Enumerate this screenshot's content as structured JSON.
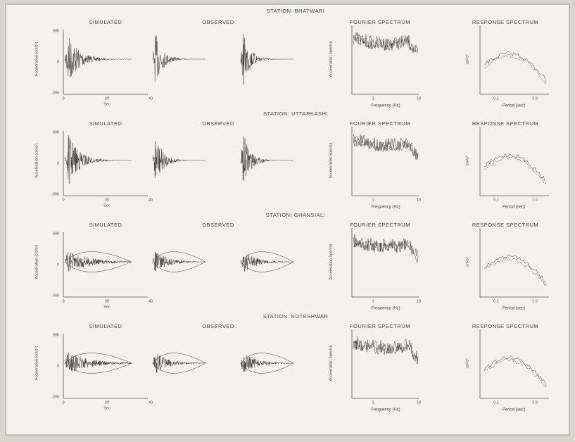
{
  "rows": [
    {
      "station": "STATION: BHATWARI",
      "simulated": "SIMULATED",
      "observed": "OBSERVED",
      "y_axis": "Acceleration (cm/s²)",
      "y_ticks": [
        "300",
        "0",
        "-300"
      ],
      "x_ticks": [
        "0",
        "20",
        "40"
      ],
      "x_axis": "Sec",
      "fourier": {
        "title": "FOURIER SPECTRUM",
        "y_axis": "Acceleration Spectra",
        "x_axis": "Frequency (Hz)",
        "x_ticks": [
          "1",
          "10"
        ]
      },
      "response": {
        "title": "RESPONSE SPECTRUM",
        "y_axis": "cm/s²",
        "x_axis": "Period (sec)",
        "x_ticks": [
          "0.1",
          "1.0"
        ]
      }
    },
    {
      "station": "STATION: UTTARKASHI",
      "simulated": "SIMULATED",
      "observed": "OBSERVED",
      "y_axis": "Acceleration (cm/s²)",
      "y_ticks": [
        "300",
        "0",
        "-300"
      ],
      "x_ticks": [
        "0",
        "20",
        "40"
      ],
      "x_axis": "Sec",
      "fourier": {
        "title": "FOURIER SPECTRUM",
        "y_axis": "Acceleration Spectra",
        "x_axis": "Frequency (Hz)",
        "x_ticks": [
          "1",
          "10"
        ]
      },
      "response": {
        "title": "RESPONSE SPECTRUM",
        "y_axis": "cm/s²",
        "x_axis": "Period (sec)",
        "x_ticks": [
          "0.1",
          "1.0"
        ]
      }
    },
    {
      "station": "STATION: GHANSIALI",
      "simulated": "SIMULATED",
      "observed": "OBSERVED",
      "y_axis": "Acceleration (cm/s²)",
      "y_ticks": [
        "300",
        "0",
        "-300"
      ],
      "x_ticks": [
        "0",
        "20",
        "40"
      ],
      "x_axis": "Sec",
      "fourier": {
        "title": "FOURIER SPECTRUM",
        "y_axis": "Acceleration Spectra",
        "x_axis": "Frequency (Hz)",
        "x_ticks": [
          "1",
          "10"
        ]
      },
      "response": {
        "title": "RESPONSE SPECTRUM",
        "y_axis": "cm/s²",
        "x_axis": "Period (sec)",
        "x_ticks": [
          "0.1",
          "1.0"
        ]
      }
    },
    {
      "station": "STATION: KOTESHWAR",
      "simulated": "SIMULATED",
      "observed": "OBSERVED",
      "y_axis": "Acceleration (cm/s²)",
      "y_ticks": [
        "300",
        "0",
        "-300"
      ],
      "x_ticks": [
        "0",
        "20",
        "40"
      ],
      "x_axis": "Sec",
      "fourier": {
        "title": "FOURIER SPECTRUM",
        "y_axis": "Acceleration Spectra",
        "x_axis": "Frequency (Hz)",
        "x_ticks": [
          "1",
          "10"
        ]
      },
      "response": {
        "title": "RESPONSE SPECTRUM",
        "y_axis": "cm/s²",
        "x_axis": "Period (sec)",
        "x_ticks": [
          "0.1",
          "1.0"
        ]
      }
    }
  ]
}
